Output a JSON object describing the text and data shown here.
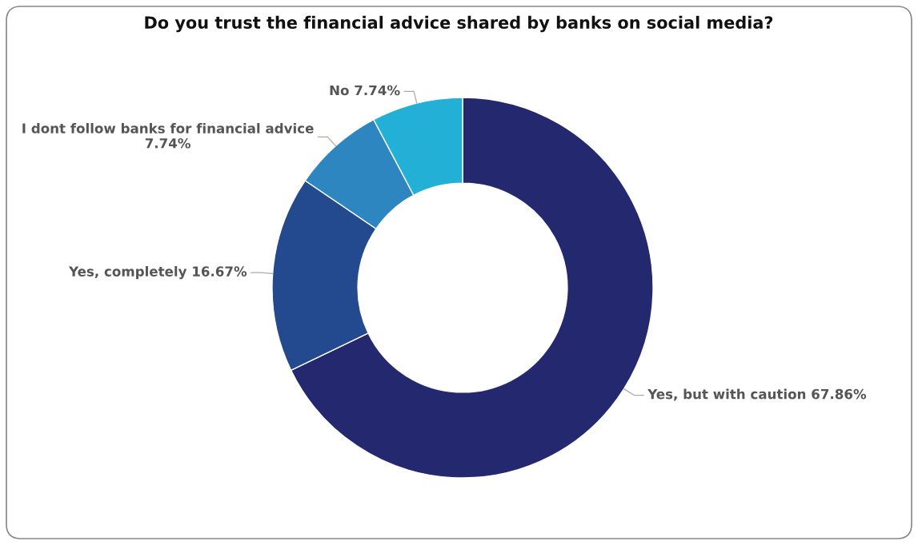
{
  "chart_data": {
    "type": "donut",
    "title": "Do you trust the financial advice shared by banks on social media?",
    "categories": [
      "Yes, but with caution",
      "Yes, completely",
      "I dont follow banks for financial advice",
      "No"
    ],
    "values": [
      67.86,
      16.67,
      7.74,
      7.74
    ],
    "value_labels": [
      "67.86%",
      "16.67%",
      "7.74%",
      "7.74%"
    ],
    "colors": [
      "#23286f",
      "#234a8f",
      "#2e86c1",
      "#22b0d6"
    ],
    "legend": false
  }
}
